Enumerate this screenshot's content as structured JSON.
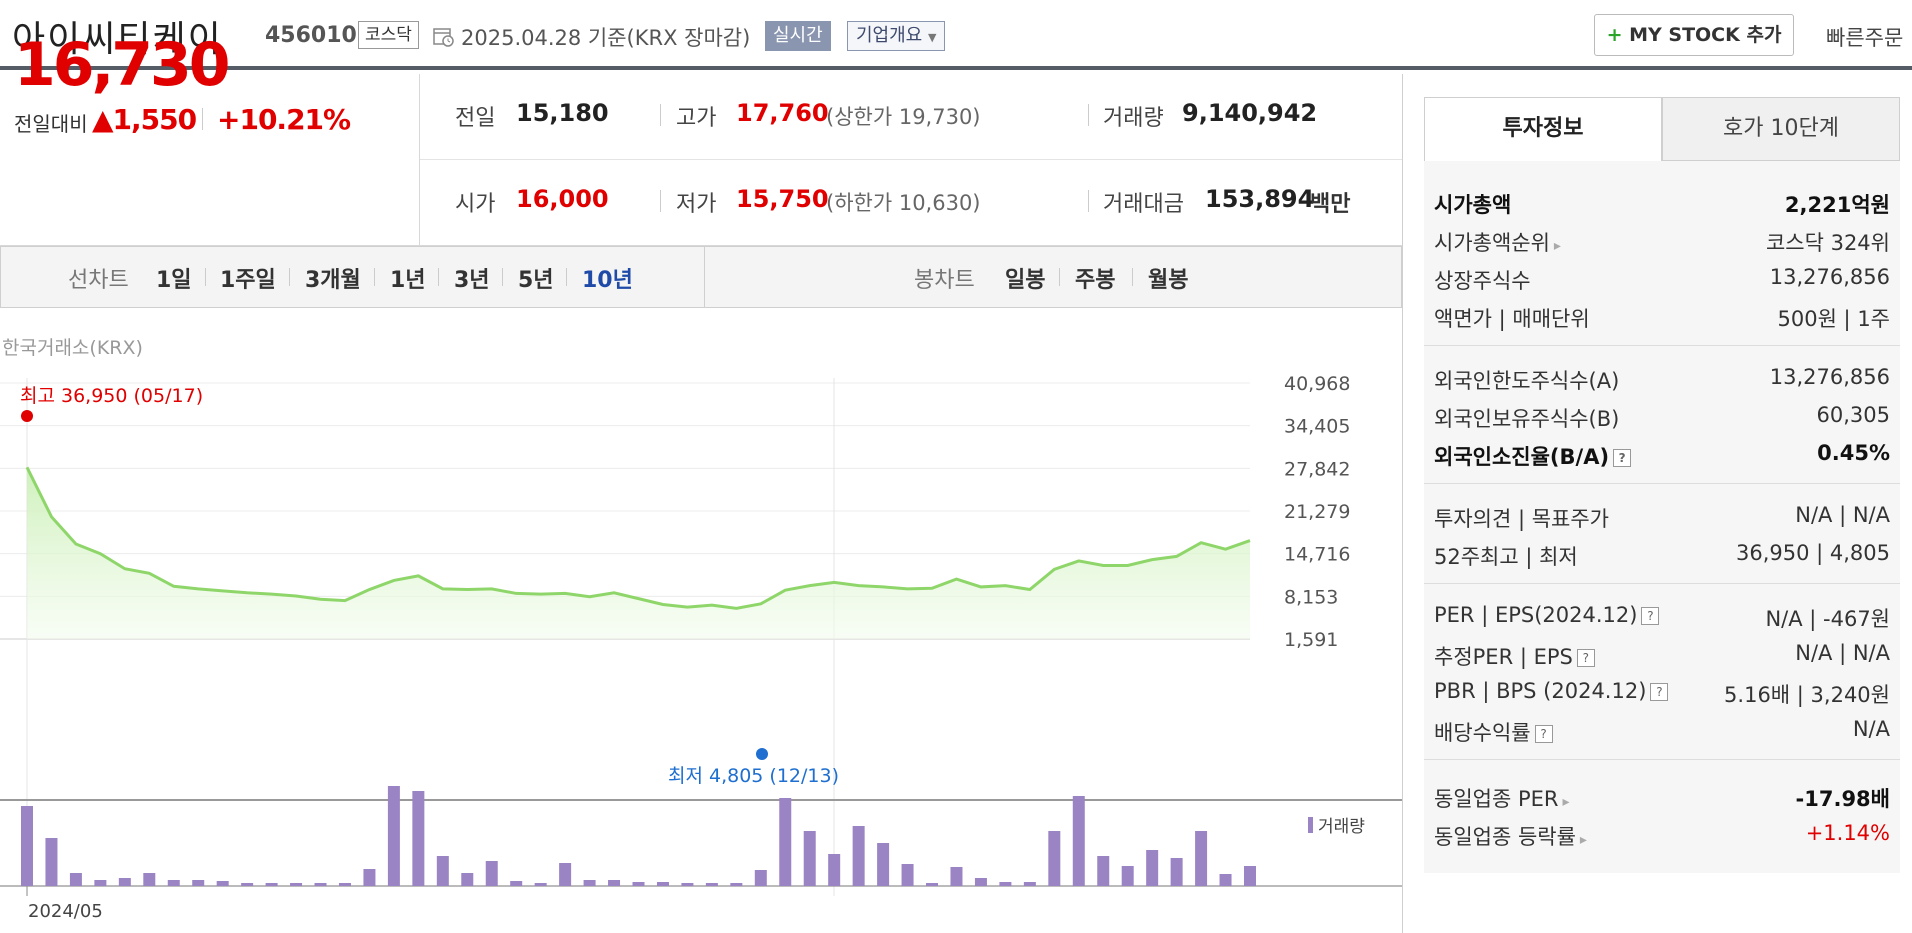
{
  "header": {
    "title": "아이씨티케이",
    "code": "456010",
    "market": "코스닥",
    "date": "2025.04.28 기준(KRX 장마감)",
    "realtime": "실시간",
    "company_overview": "기업개요",
    "mystock_plus": "+",
    "mystock": "MY STOCK 추가",
    "quick_order": "빠른주문"
  },
  "price": {
    "current": "16,730",
    "change_label": "전일대비",
    "change": "▲1,550",
    "change_pct": "+10.21%"
  },
  "stats": {
    "prev_label": "전일",
    "prev": "15,180",
    "high_label": "고가",
    "high": "17,760",
    "upper_limit": "(상한가 19,730)",
    "volume_label": "거래량",
    "volume": "9,140,942",
    "open_label": "시가",
    "open": "16,000",
    "low_label": "저가",
    "low": "15,750",
    "lower_limit": "(하한가 10,630)",
    "amount_label": "거래대금",
    "amount": "153,894",
    "amount_unit": "백만"
  },
  "toolbar": {
    "line_label": "선차트",
    "line_periods": [
      "1일",
      "1주일",
      "3개월",
      "1년",
      "3년",
      "5년",
      "10년"
    ],
    "candle_label": "봉차트",
    "candle_periods": [
      "일봉",
      "주봉",
      "월봉"
    ]
  },
  "chart": {
    "exchange": "한국거래소(KRX)",
    "high_annot": "최고 36,950 (05/17)",
    "low_annot": "최저 4,805 (12/13)",
    "volume_legend": "거래량",
    "x_label": "2024/05",
    "y_ticks": [
      "40,968",
      "34,405",
      "27,842",
      "21,279",
      "14,716",
      "8,153",
      "1,591"
    ]
  },
  "chart_data": {
    "type": "area",
    "ylim": [
      1591,
      40968
    ],
    "y_ticks": [
      40968,
      34405,
      27842,
      21279,
      14716,
      8153,
      1591
    ],
    "high_point": {
      "value": 36950,
      "date": "05/17"
    },
    "low_point": {
      "value": 4805,
      "date": "12/13"
    },
    "price": [
      28000,
      20400,
      16200,
      14700,
      12400,
      11700,
      9700,
      9300,
      9000,
      8700,
      8500,
      8200,
      7700,
      7500,
      9200,
      10600,
      11300,
      9300,
      9200,
      9300,
      8600,
      8500,
      8600,
      8100,
      8700,
      7800,
      6900,
      6500,
      6800,
      6300,
      7000,
      9100,
      9800,
      10300,
      9800,
      9600,
      9300,
      9400,
      10800,
      9600,
      9800,
      9200,
      12300,
      13600,
      12900,
      12900,
      13800,
      14300,
      16400,
      15400,
      16730
    ],
    "volume_levels": [
      0.8,
      0.48,
      0.13,
      0.06,
      0.08,
      0.13,
      0.06,
      0.06,
      0.05,
      0.03,
      0.03,
      0.03,
      0.03,
      0.03,
      0.17,
      1.0,
      0.95,
      0.3,
      0.13,
      0.25,
      0.05,
      0.03,
      0.23,
      0.06,
      0.06,
      0.04,
      0.04,
      0.03,
      0.03,
      0.03,
      0.16,
      0.88,
      0.55,
      0.32,
      0.6,
      0.43,
      0.22,
      0.03,
      0.19,
      0.08,
      0.04,
      0.04,
      0.55,
      0.9,
      0.3,
      0.2,
      0.36,
      0.28,
      0.55,
      0.12,
      0.2
    ]
  },
  "invest": {
    "tab_active": "투자정보",
    "tab_other": "호가 10단계",
    "rows": [
      {
        "label": "시가총액",
        "value": "2,221억원"
      },
      {
        "label": "시가총액순위",
        "value": "코스닥 324위"
      },
      {
        "label": "상장주식수",
        "value": "13,276,856"
      },
      {
        "label": "액면가 | 매매단위",
        "value": "500원 | 1주"
      },
      {
        "label": "외국인한도주식수(A)",
        "value": "13,276,856"
      },
      {
        "label": "외국인보유주식수(B)",
        "value": "60,305"
      },
      {
        "label": "외국인소진율(B/A)",
        "value": "0.45%"
      },
      {
        "label": "투자의견 | 목표주가",
        "value": "N/A | N/A"
      },
      {
        "label": "52주최고 | 최저",
        "value": "36,950 | 4,805"
      },
      {
        "label": "PER | EPS(2024.12)",
        "value": "N/A | -467원"
      },
      {
        "label": "추정PER | EPS",
        "value": "N/A | N/A"
      },
      {
        "label": "PBR | BPS (2024.12)",
        "value": "5.16배 | 3,240원"
      },
      {
        "label": "배당수익률",
        "value": "N/A"
      },
      {
        "label": "동일업종 PER",
        "value": "-17.98배"
      },
      {
        "label": "동일업종 등락률",
        "value": "+1.14%"
      }
    ]
  },
  "colors": {
    "up": "#e00000",
    "line": "#8fd66a",
    "volume": "#9b84c4",
    "low": "#1e6fd0"
  }
}
